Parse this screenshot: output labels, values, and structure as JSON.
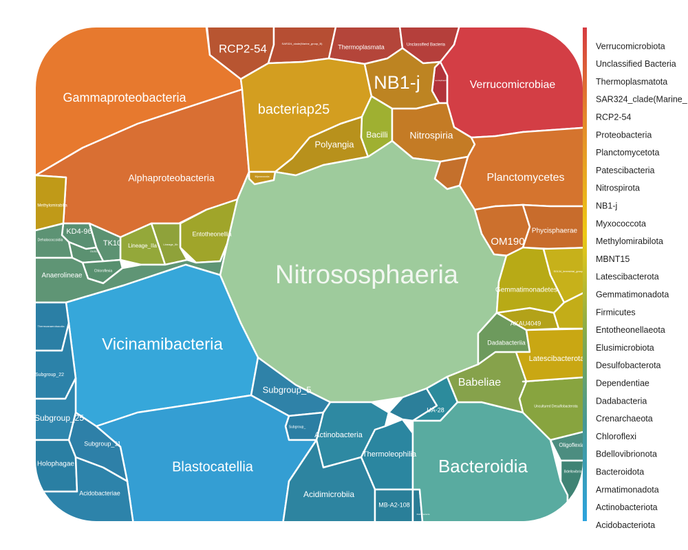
{
  "chart_data": {
    "type": "voronoi-treemap",
    "title": "",
    "legend": {
      "placement": "right",
      "entries": [
        {
          "name": "Verrucomicrobiota",
          "color": "#d63b41"
        },
        {
          "name": "Unclassified Bacteria",
          "color": "#d84e3b"
        },
        {
          "name": "Thermoplasmatota",
          "color": "#db5f38"
        },
        {
          "name": "SAR324_clade(Marine_",
          "color": "#de6e34"
        },
        {
          "name": "RCP2-54",
          "color": "#e07b30"
        },
        {
          "name": "Proteobacteria",
          "color": "#e3872c"
        },
        {
          "name": "Planctomycetota",
          "color": "#e59328"
        },
        {
          "name": "Patescibacteria",
          "color": "#e79f24"
        },
        {
          "name": "Nitrospirota",
          "color": "#e9aa20"
        },
        {
          "name": "NB1-j",
          "color": "#ebb51c"
        },
        {
          "name": "Myxococcota",
          "color": "#ecbf18"
        },
        {
          "name": "Methylomirabilota",
          "color": "#edc914"
        },
        {
          "name": "MBNT15",
          "color": "#e6d115"
        },
        {
          "name": "Latescibacterota",
          "color": "#d6cf1e"
        },
        {
          "name": "Gemmatimonadota",
          "color": "#c6c827"
        },
        {
          "name": "Firmicutes",
          "color": "#b6c130"
        },
        {
          "name": "Entotheonellaeota",
          "color": "#a6ba39"
        },
        {
          "name": "Elusimicrobiota",
          "color": "#96b342"
        },
        {
          "name": "Desulfobacterota",
          "color": "#86ab4b"
        },
        {
          "name": "Dependentiae",
          "color": "#77a454"
        },
        {
          "name": "Dadabacteria",
          "color": "#6b9e5e"
        },
        {
          "name": "Crenarchaeota",
          "color": "#5f9c70"
        },
        {
          "name": "Chloroflexi",
          "color": "#539a82"
        },
        {
          "name": "Bdellovibrionota",
          "color": "#479894"
        },
        {
          "name": "Bacteroidota",
          "color": "#3c96a6"
        },
        {
          "name": "Armatimonadota",
          "color": "#3399b8"
        },
        {
          "name": "Actinobacteriota",
          "color": "#2f9dcc"
        },
        {
          "name": "Acidobacteriota",
          "color": "#2ba3de"
        }
      ]
    },
    "cells": [
      {
        "name": "Nitrososphaeria",
        "phylum": "Crenarchaeota",
        "color": "#9ecb9c"
      },
      {
        "name": "Gammaproteobacteria",
        "phylum": "Proteobacteria",
        "color": "#e7792e"
      },
      {
        "name": "Alphaproteobacteria",
        "phylum": "Proteobacteria",
        "color": "#d96f33"
      },
      {
        "name": "Methylomirabilia",
        "phylum": "Methylomirabilota",
        "color": "#c09a18"
      },
      {
        "name": "RCP2-54",
        "phylum": "RCP2-54",
        "color": "#b85531"
      },
      {
        "name": "SAR324_clade(Marine_group_B)",
        "phylum": "SAR324_clade(Marine_",
        "color": "#b64e33"
      },
      {
        "name": "Thermoplasmata",
        "phylum": "Thermoplasmatota",
        "color": "#b4453a"
      },
      {
        "name": "Unclassified Bacteria",
        "phylum": "Unclassified Bacteria",
        "color": "#b53f3b"
      },
      {
        "name": "bacteriap25",
        "phylum": "Myxococcota",
        "color": "#d39e20"
      },
      {
        "name": "Polyangia",
        "phylum": "Myxococcota",
        "color": "#b8911c"
      },
      {
        "name": "Myxococcia",
        "phylum": "Myxococcota",
        "color": "#c4951e"
      },
      {
        "name": "NB1-j",
        "phylum": "NB1-j",
        "color": "#bd8422"
      },
      {
        "name": "Bacilli",
        "phylum": "Firmicutes",
        "color": "#9fb031"
      },
      {
        "name": "Nitrospiria",
        "phylum": "Nitrospirota",
        "color": "#c47b25"
      },
      {
        "name": "Verrucomicrobiae",
        "phylum": "Verrucomicrobiota",
        "color": "#d33e45"
      },
      {
        "name": "Lentisphaeria",
        "phylum": "Verrucomicrobiota",
        "color": "#b2333a"
      },
      {
        "name": "Planctomycetes",
        "phylum": "Planctomycetota",
        "color": "#d5742e"
      },
      {
        "name": "Phycisphaerae",
        "phylum": "Planctomycetota",
        "color": "#c86c2c"
      },
      {
        "name": "OM190",
        "phylum": "Planctomycetota",
        "color": "#cc702d"
      },
      {
        "name": "Gemmatimonadetes",
        "phylum": "Gemmatimonadota",
        "color": "#b8aa16"
      },
      {
        "name": "S0134_terrestrial_group",
        "phylum": "Gemmatimonadota",
        "color": "#c7b11a"
      },
      {
        "name": "AKAU4049",
        "phylum": "Gemmatimonadota",
        "color": "#b3a219"
      },
      {
        "name": "Latescibacterota",
        "phylum": "Latescibacterota",
        "color": "#c9a713"
      },
      {
        "name": "Dadabacteriia",
        "phylum": "Dadabacteria",
        "color": "#6d9a5d"
      },
      {
        "name": "Babeliae",
        "phylum": "Dependentiae",
        "color": "#86a24b"
      },
      {
        "name": "Uncultured Desulfobacterota",
        "phylum": "Desulfobacterota",
        "color": "#88a43f"
      },
      {
        "name": "Oligoflexia",
        "phylum": "Bdellovibrionota",
        "color": "#4c8d80"
      },
      {
        "name": "Bdellovibrionia",
        "phylum": "Bdellovibrionota",
        "color": "#3f8374"
      },
      {
        "name": "Bacteroidia",
        "phylum": "Bacteroidota",
        "color": "#59aba0"
      },
      {
        "name": "Actinobacteria",
        "phylum": "Actinobacteriota",
        "color": "#2e89a2"
      },
      {
        "name": "Thermoleophilia",
        "phylum": "Actinobacteriota",
        "color": "#2b86a0"
      },
      {
        "name": "Acidimicrobiia",
        "phylum": "Actinobacteriota",
        "color": "#2d84a0"
      },
      {
        "name": "MB-A2-108",
        "phylum": "Actinobacteriota",
        "color": "#2a7f99"
      },
      {
        "name": "Rubrobacteria",
        "phylum": "Actinobacteriota",
        "color": "#2a7c95"
      },
      {
        "name": "Vicinamibacteria",
        "phylum": "Acidobacteriota",
        "color": "#36a7da"
      },
      {
        "name": "Blastocatellia",
        "phylum": "Acidobacteriota",
        "color": "#349ed3"
      },
      {
        "name": "Subgroup_5",
        "phylum": "Acidobacteriota",
        "color": "#2f82a8"
      },
      {
        "name": "Subgroup_25",
        "phylum": "Acidobacteriota",
        "color": "#2f86ad"
      },
      {
        "name": "Subgroup_22",
        "phylum": "Acidobacteriota",
        "color": "#2c82a9"
      },
      {
        "name": "Subgroup_11",
        "phylum": "Acidobacteriota",
        "color": "#2e80a8"
      },
      {
        "name": "Holophagae",
        "phylum": "Acidobacteriota",
        "color": "#2a7fa3"
      },
      {
        "name": "Acidobacteriae",
        "phylum": "Acidobacteriota",
        "color": "#2d83aa"
      },
      {
        "name": "Thermoanaerobaculia",
        "phylum": "Acidobacteriota",
        "color": "#2b7fa5"
      },
      {
        "name": "Anaerolineae",
        "phylum": "Chloroflexi",
        "color": "#5f9575"
      },
      {
        "name": "KD4-96",
        "phylum": "Chloroflexi",
        "color": "#5a9072"
      },
      {
        "name": "TK10",
        "phylum": "Chloroflexi",
        "color": "#5c9272"
      },
      {
        "name": "Dehalococcoidia",
        "phylum": "Chloroflexi",
        "color": "#5d9374"
      },
      {
        "name": "Chloroflexia",
        "phylum": "Chloroflexi",
        "color": "#58906f"
      },
      {
        "name": "Lineage_IIa",
        "phylum": "Elusimicrobiota",
        "color": "#94a83a"
      },
      {
        "name": "Lineage_IIb",
        "phylum": "Elusimicrobiota",
        "color": "#8fa23a"
      },
      {
        "name": "Entotheonellia",
        "phylum": "Entotheonellaeota",
        "color": "#a0a52a"
      },
      {
        "name": "OLB14",
        "phylum": "Chloroflexi",
        "color": "#5b9171"
      }
    ]
  },
  "labels": {
    "nitrososphaeria": "Nitrososphaeria",
    "gammaproteobacteria": "Gammaproteobacteria",
    "alphaproteobacteria": "Alphaproteobacteria",
    "methylomirabilia": "Methylomirabilia",
    "rcp2_54": "RCP2-54",
    "sar324": "SAR324_clade(Marine_group_B)",
    "thermoplasmata": "Thermoplasmata",
    "unclassified_bacteria": "Unclassified Bacteria",
    "bacteriap25": "bacteriap25",
    "polyangia": "Polyangia",
    "myxococcia": "Myxococcia",
    "nb1_j": "NB1-j",
    "bacilli": "Bacilli",
    "nitrospiria": "Nitrospiria",
    "verrucomicrobiae": "Verrucomicrobiae",
    "lentisphaeria": "Lentisphaeria",
    "planctomycetes": "Planctomycetes",
    "phycisphaerae": "Phycisphaerae",
    "om190": "OM190",
    "gemmatimonadetes": "Gemmatimonadetes",
    "s0134": "S0134_terrestrial_group",
    "akau4049": "AKAU4049",
    "latescibacterota": "Latescibacterota",
    "dadabacteriia": "Dadabacteriia",
    "babeliae": "Babeliae",
    "uncultured_desulfo": "Uncultured Desulfobacterota",
    "oligoflexia": "Oligoflexia",
    "bdellovibrionia": "Bdellovibrionia",
    "bacteroidia": "Bacteroidia",
    "actinobacteria": "Actinobacteria",
    "thermoleophilia": "Thermoleophilia",
    "acidimicrobiia": "Acidimicrobiia",
    "mb_a2_108": "MB-A2-108",
    "rubrobacteria": "Rubrobacteria",
    "vicinamibacteria": "Vicinamibacteria",
    "blastocatellia": "Blastocatellia",
    "subgroup_5": "Subgroup_5",
    "subgroup_25": "Subgroup_25",
    "subgroup_22": "Subgroup_22",
    "subgroup_11": "Subgroup_11",
    "holophagae": "Holophagae",
    "acidobacteriae": "Acidobacteriae",
    "thermoanaerobaculia": "Thermoanaerobaculia",
    "anaerolineae": "Anaerolineae",
    "kd4_96": "KD4-96",
    "tk10": "TK10",
    "dehalococcoidia": "Dehalococcoidia",
    "chloroflexia": "Chloroflexia",
    "lineage_iia": "Lineage_IIa",
    "lineage_iib": "Lineage_IIb",
    "entotheonellia": "Entotheonellia",
    "olb14": "OLB14",
    "ua_28": "UA-28",
    "subgroup_small": "Subgroup_"
  }
}
